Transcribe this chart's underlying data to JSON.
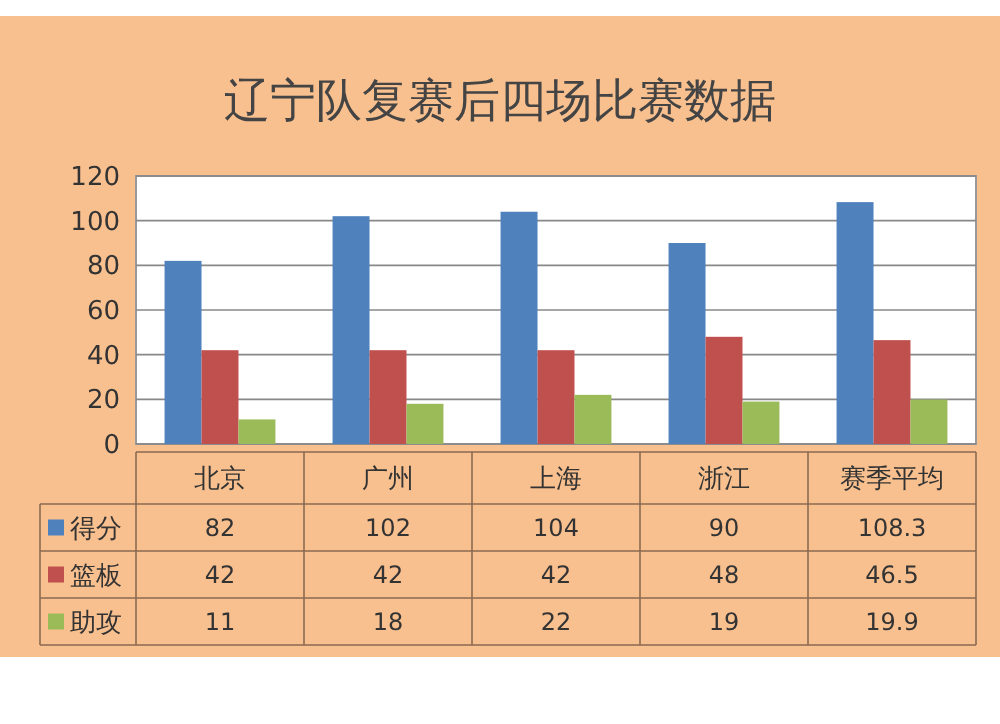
{
  "chart_data": {
    "type": "bar",
    "title": "辽宁队复赛后四场比赛数据",
    "categories": [
      "北京",
      "广州",
      "上海",
      "浙江",
      "赛季平均"
    ],
    "series": [
      {
        "name": "得分",
        "color": "#4f81bd",
        "values": [
          82,
          102,
          104,
          90,
          108.3
        ]
      },
      {
        "name": "篮板",
        "color": "#c0504d",
        "values": [
          42,
          42,
          42,
          48,
          46.5
        ]
      },
      {
        "name": "助攻",
        "color": "#9bbb59",
        "values": [
          11,
          18,
          22,
          19,
          19.9
        ]
      }
    ],
    "ylim": [
      0,
      120
    ],
    "yticks": [
      0,
      20,
      40,
      60,
      80,
      100,
      120
    ],
    "grid": "y",
    "data_labels": true,
    "legend": "bottom"
  }
}
